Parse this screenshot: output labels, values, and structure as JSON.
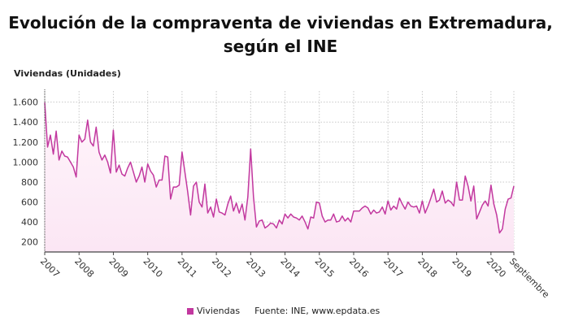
{
  "title_line1": "Evolución de la compraventa de viviendas en Extremadura,",
  "title_line2": "según el INE",
  "source": "Fuente: INE, www.epdata.es",
  "colors": {
    "line": "#c2389f",
    "fill": "#fbe6f4",
    "grid": "#c8c8c8"
  },
  "chart_data": {
    "type": "area",
    "title": "Evolución de la compraventa de viviendas en Extremadura, según el INE",
    "ylabel": "Viviendas (Unidades)",
    "xlabel": "",
    "ylim": [
      100,
      1750
    ],
    "yticks": [
      200,
      400,
      600,
      800,
      1000,
      1200,
      1400,
      1600
    ],
    "ytick_labels": [
      "200",
      "400",
      "600",
      "800",
      "1.000",
      "1.200",
      "1.400",
      "1.600"
    ],
    "xtick_labels": [
      "2007",
      "2008",
      "2009",
      "2010",
      "2011",
      "2012",
      "2013",
      "2014",
      "2015",
      "2016",
      "2017",
      "2018",
      "2019",
      "2020",
      "Septiembre"
    ],
    "start": "2007-01",
    "end": "2020-09",
    "frequency": "monthly",
    "grid": true,
    "legend_position": "bottom",
    "series": [
      {
        "name": "Viviendas",
        "values": [
          1600,
          1150,
          1270,
          1080,
          1310,
          1020,
          1110,
          1060,
          1050,
          1000,
          950,
          850,
          1270,
          1200,
          1230,
          1420,
          1200,
          1160,
          1350,
          1100,
          1020,
          1070,
          1000,
          890,
          1320,
          900,
          970,
          880,
          860,
          940,
          1000,
          900,
          800,
          860,
          950,
          800,
          980,
          910,
          870,
          750,
          820,
          820,
          1060,
          1050,
          630,
          750,
          750,
          770,
          1100,
          900,
          700,
          470,
          760,
          800,
          600,
          550,
          780,
          490,
          550,
          450,
          630,
          500,
          490,
          470,
          580,
          660,
          510,
          590,
          490,
          580,
          420,
          650,
          1130,
          650,
          350,
          410,
          420,
          340,
          360,
          390,
          380,
          340,
          420,
          380,
          480,
          440,
          480,
          450,
          440,
          420,
          460,
          400,
          330,
          450,
          440,
          600,
          590,
          460,
          400,
          420,
          420,
          480,
          400,
          410,
          460,
          410,
          440,
          400,
          510,
          510,
          510,
          540,
          560,
          540,
          480,
          520,
          490,
          500,
          550,
          480,
          610,
          520,
          560,
          530,
          640,
          580,
          530,
          600,
          560,
          550,
          560,
          490,
          610,
          490,
          560,
          640,
          730,
          600,
          620,
          710,
          590,
          620,
          600,
          560,
          800,
          620,
          620,
          860,
          760,
          610,
          760,
          430,
          500,
          570,
          610,
          560,
          770,
          580,
          470,
          290,
          330,
          530,
          630,
          640,
          760
        ]
      }
    ]
  }
}
